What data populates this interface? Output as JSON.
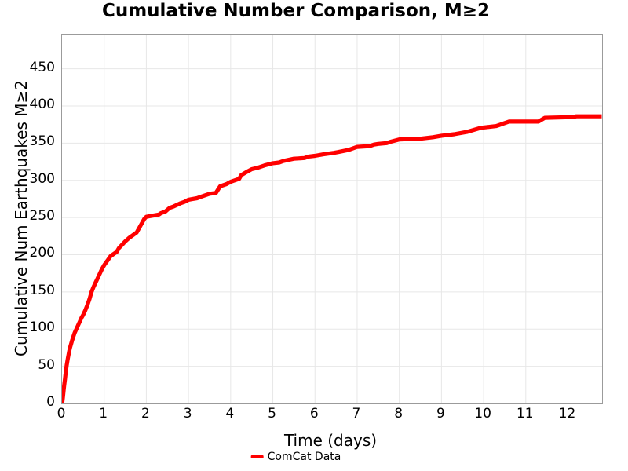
{
  "colors": {
    "line": "#ff0000",
    "grid": "#e7e7e7",
    "plot_border": "#9b9b9b",
    "text": "#000000",
    "background": "#ffffff"
  },
  "legend": {
    "entries": [
      {
        "label": "ComCat Data",
        "color": "#ff0000"
      }
    ]
  },
  "chart_data": {
    "type": "line",
    "title": "Cumulative Number Comparison, M≥2",
    "xlabel": "Time (days)",
    "ylabel": "Cumulative Num Earthquakes M≥2",
    "xlim": [
      0,
      12.81
    ],
    "ylim": [
      0,
      496
    ],
    "x_ticks": [
      0,
      1,
      2,
      3,
      4,
      5,
      6,
      7,
      8,
      9,
      10,
      11,
      12
    ],
    "y_ticks": [
      0,
      50,
      100,
      150,
      200,
      250,
      300,
      350,
      400,
      450
    ],
    "grid": true,
    "legend_position": "bottom-center",
    "series": [
      {
        "name": "ComCat Data",
        "color": "#ff0000",
        "points": [
          [
            0,
            0
          ],
          [
            0.01,
            3
          ],
          [
            0.02,
            8
          ],
          [
            0.04,
            18
          ],
          [
            0.05,
            24
          ],
          [
            0.07,
            33
          ],
          [
            0.08,
            38
          ],
          [
            0.1,
            47
          ],
          [
            0.11,
            51
          ],
          [
            0.13,
            58
          ],
          [
            0.14,
            61
          ],
          [
            0.17,
            70
          ],
          [
            0.19,
            75
          ],
          [
            0.21,
            79
          ],
          [
            0.24,
            85
          ],
          [
            0.27,
            90
          ],
          [
            0.3,
            95
          ],
          [
            0.34,
            100
          ],
          [
            0.38,
            105
          ],
          [
            0.42,
            110
          ],
          [
            0.46,
            115
          ],
          [
            0.5,
            119
          ],
          [
            0.55,
            125
          ],
          [
            0.6,
            132
          ],
          [
            0.65,
            140
          ],
          [
            0.68,
            146
          ],
          [
            0.7,
            150
          ],
          [
            0.75,
            157
          ],
          [
            0.8,
            163
          ],
          [
            0.85,
            169
          ],
          [
            0.9,
            175
          ],
          [
            0.95,
            181
          ],
          [
            1,
            186
          ],
          [
            1.05,
            190
          ],
          [
            1.1,
            194
          ],
          [
            1.15,
            198
          ],
          [
            1.2,
            200
          ],
          [
            1.3,
            204
          ],
          [
            1.35,
            209
          ],
          [
            1.45,
            215
          ],
          [
            1.5,
            218
          ],
          [
            1.6,
            223
          ],
          [
            1.7,
            227
          ],
          [
            1.77,
            230
          ],
          [
            1.85,
            238
          ],
          [
            1.95,
            248
          ],
          [
            2,
            251
          ],
          [
            2.1,
            252
          ],
          [
            2.3,
            254
          ],
          [
            2.35,
            256
          ],
          [
            2.45,
            258
          ],
          [
            2.55,
            263
          ],
          [
            2.65,
            265
          ],
          [
            2.8,
            269
          ],
          [
            2.9,
            271
          ],
          [
            3,
            274
          ],
          [
            3.1,
            275
          ],
          [
            3.2,
            276
          ],
          [
            3.3,
            278
          ],
          [
            3.4,
            280
          ],
          [
            3.5,
            282
          ],
          [
            3.65,
            283
          ],
          [
            3.75,
            292
          ],
          [
            3.9,
            295
          ],
          [
            4,
            298
          ],
          [
            4.1,
            300
          ],
          [
            4.2,
            302
          ],
          [
            4.25,
            307
          ],
          [
            4.4,
            312
          ],
          [
            4.5,
            315
          ],
          [
            4.65,
            317
          ],
          [
            4.8,
            320
          ],
          [
            5,
            323
          ],
          [
            5.15,
            324
          ],
          [
            5.25,
            326
          ],
          [
            5.5,
            329
          ],
          [
            5.75,
            330
          ],
          [
            5.85,
            332
          ],
          [
            6,
            333
          ],
          [
            6.2,
            335
          ],
          [
            6.45,
            337
          ],
          [
            6.55,
            338
          ],
          [
            6.8,
            341
          ],
          [
            7,
            345
          ],
          [
            7.3,
            346
          ],
          [
            7.4,
            348
          ],
          [
            7.5,
            349
          ],
          [
            7.7,
            350
          ],
          [
            7.8,
            352
          ],
          [
            8,
            355
          ],
          [
            8.5,
            356
          ],
          [
            8.8,
            358
          ],
          [
            9,
            360
          ],
          [
            9.3,
            362
          ],
          [
            9.6,
            365
          ],
          [
            9.9,
            370
          ],
          [
            10,
            371
          ],
          [
            10.3,
            373
          ],
          [
            10.5,
            377
          ],
          [
            10.6,
            379
          ],
          [
            11.3,
            379
          ],
          [
            11.45,
            384
          ],
          [
            12.1,
            385
          ],
          [
            12.2,
            386
          ],
          [
            12.8,
            386
          ]
        ]
      }
    ]
  }
}
